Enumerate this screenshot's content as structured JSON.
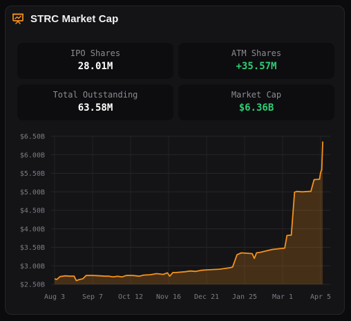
{
  "header": {
    "title": "STRC Market Cap",
    "icon": "presentation-chart-icon",
    "accent": "#f7931a"
  },
  "stats": [
    {
      "label": "IPO Shares",
      "value": "28.01M",
      "color": "#ffffff"
    },
    {
      "label": "ATM Shares",
      "value": "+35.57M",
      "color": "#2fcf73"
    },
    {
      "label": "Total Outstanding",
      "value": "63.58M",
      "color": "#ffffff"
    },
    {
      "label": "Market Cap",
      "value": "$6.36B",
      "color": "#2fcf73"
    }
  ],
  "chart_data": {
    "type": "area",
    "title": "",
    "xlabel": "",
    "ylabel": "",
    "ylim": [
      2.5,
      6.5
    ],
    "y_ticks": [
      "$2.50B",
      "$3.00B",
      "$3.50B",
      "$4.00B",
      "$4.50B",
      "$5.00B",
      "$5.50B",
      "$6.00B",
      "$6.50B"
    ],
    "x_ticks": [
      "Aug 3",
      "Sep 7",
      "Oct 12",
      "Nov 16",
      "Dec 21",
      "Jan 25",
      "Mar 1",
      "Apr 5"
    ],
    "grid": true,
    "series": [
      {
        "color": "#f7931a",
        "points": [
          [
            0,
            2.65
          ],
          [
            2,
            2.63
          ],
          [
            5,
            2.71
          ],
          [
            10,
            2.73
          ],
          [
            14,
            2.72
          ],
          [
            18,
            2.72
          ],
          [
            20,
            2.6
          ],
          [
            23,
            2.63
          ],
          [
            26,
            2.65
          ],
          [
            29,
            2.74
          ],
          [
            35,
            2.74
          ],
          [
            42,
            2.73
          ],
          [
            46,
            2.72
          ],
          [
            50,
            2.72
          ],
          [
            54,
            2.7
          ],
          [
            58,
            2.72
          ],
          [
            62,
            2.7
          ],
          [
            66,
            2.74
          ],
          [
            72,
            2.74
          ],
          [
            78,
            2.72
          ],
          [
            82,
            2.75
          ],
          [
            88,
            2.76
          ],
          [
            94,
            2.79
          ],
          [
            100,
            2.77
          ],
          [
            104,
            2.81
          ],
          [
            106,
            2.72
          ],
          [
            109,
            2.82
          ],
          [
            112,
            2.82
          ],
          [
            120,
            2.84
          ],
          [
            125,
            2.86
          ],
          [
            130,
            2.85
          ],
          [
            135,
            2.88
          ],
          [
            140,
            2.89
          ],
          [
            146,
            2.9
          ],
          [
            152,
            2.91
          ],
          [
            157,
            2.93
          ],
          [
            162,
            2.95
          ],
          [
            164,
            2.97
          ],
          [
            168,
            3.3
          ],
          [
            172,
            3.35
          ],
          [
            178,
            3.34
          ],
          [
            182,
            3.33
          ],
          [
            184,
            3.2
          ],
          [
            186,
            3.35
          ],
          [
            190,
            3.37
          ],
          [
            196,
            3.41
          ],
          [
            200,
            3.44
          ],
          [
            206,
            3.46
          ],
          [
            212,
            3.48
          ],
          [
            214,
            3.82
          ],
          [
            218,
            3.83
          ],
          [
            221,
            4.99
          ],
          [
            223,
            5.01
          ],
          [
            228,
            5.0
          ],
          [
            234,
            5.01
          ],
          [
            236,
            5.01
          ],
          [
            239,
            5.33
          ],
          [
            244,
            5.34
          ],
          [
            245,
            5.52
          ],
          [
            246,
            5.6
          ],
          [
            247,
            6.36
          ]
        ]
      }
    ]
  }
}
